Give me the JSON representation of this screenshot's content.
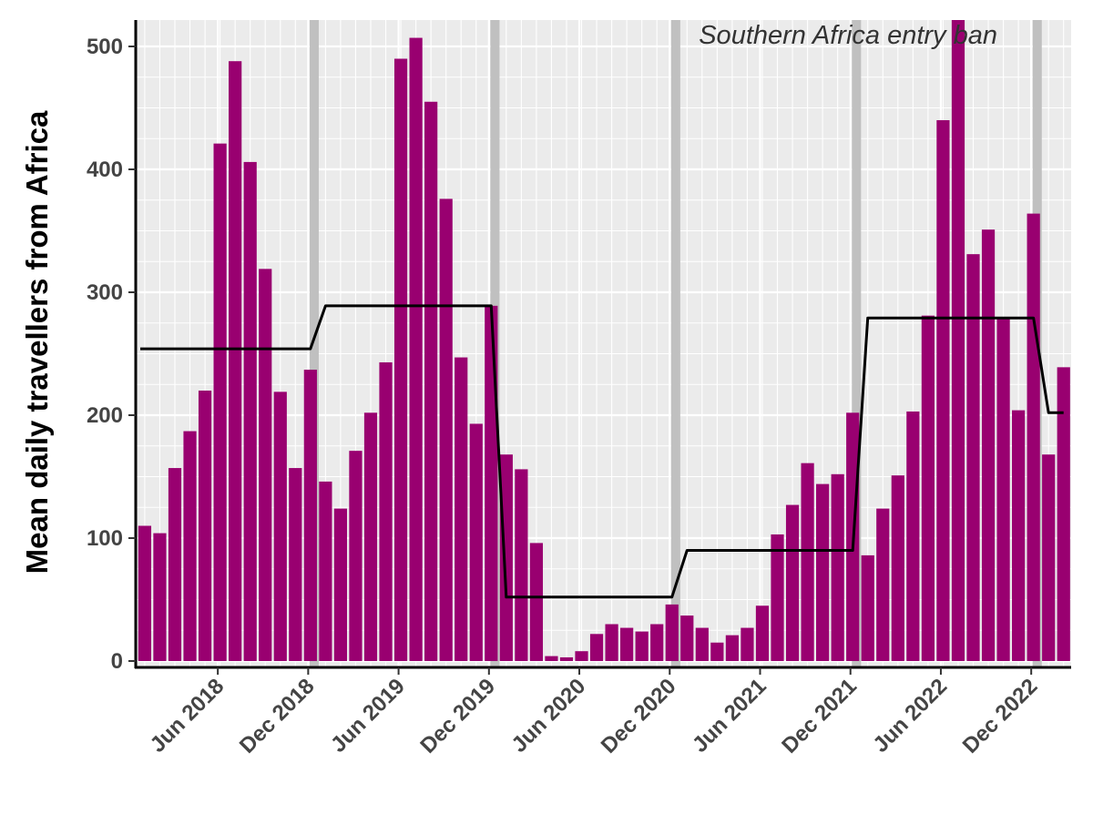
{
  "chart_data": {
    "type": "bar",
    "ylabel": "Mean daily travellers from Africa",
    "annotation": "Southern Africa entry ban",
    "ylim": [
      0,
      520
    ],
    "y_ticks": [
      0,
      100,
      200,
      300,
      400,
      500
    ],
    "x_ticks": [
      "Jun 2018",
      "Dec 2018",
      "Jun 2019",
      "Dec 2019",
      "Jun 2020",
      "Dec 2020",
      "Jun 2021",
      "Dec 2021",
      "Jun 2022",
      "Dec 2022"
    ],
    "grid": true,
    "colors": {
      "bars": "#990070",
      "line": "#000000",
      "highlight_band": "#c0c0c0",
      "panel_bg": "#ebebeb",
      "grid": "#ffffff",
      "axis_text": "#444444"
    },
    "series": [
      {
        "kind": "bar",
        "x": [
          "2018-01",
          "2018-02",
          "2018-03",
          "2018-04",
          "2018-05",
          "2018-06",
          "2018-07",
          "2018-08",
          "2018-09",
          "2018-10",
          "2018-11",
          "2018-12",
          "2019-01",
          "2019-02",
          "2019-03",
          "2019-04",
          "2019-05",
          "2019-06",
          "2019-07",
          "2019-08",
          "2019-09",
          "2019-10",
          "2019-11",
          "2019-12",
          "2020-01",
          "2020-02",
          "2020-03",
          "2020-04",
          "2020-05",
          "2020-06",
          "2020-07",
          "2020-08",
          "2020-09",
          "2020-10",
          "2020-11",
          "2020-12",
          "2021-01",
          "2021-02",
          "2021-03",
          "2021-04",
          "2021-05",
          "2021-06",
          "2021-07",
          "2021-08",
          "2021-09",
          "2021-10",
          "2021-11",
          "2021-12",
          "2022-01",
          "2022-02",
          "2022-03",
          "2022-04",
          "2022-05",
          "2022-06",
          "2022-07",
          "2022-08",
          "2022-09",
          "2022-10",
          "2022-11",
          "2022-12",
          "2023-01",
          "2023-02"
        ],
        "values": [
          110,
          104,
          157,
          187,
          220,
          421,
          488,
          406,
          319,
          219,
          157,
          237,
          146,
          124,
          171,
          202,
          243,
          490,
          507,
          455,
          376,
          247,
          193,
          289,
          168,
          156,
          96,
          4,
          3,
          8,
          22,
          30,
          27,
          24,
          30,
          46,
          37,
          27,
          15,
          21,
          27,
          45,
          103,
          127,
          161,
          144,
          152,
          202,
          86,
          124,
          151,
          203,
          281,
          440,
          525,
          331,
          351,
          280,
          204,
          364,
          168,
          239
        ]
      },
      {
        "kind": "line",
        "x": [
          "2018-01",
          "2018-12",
          "2019-01",
          "2019-12",
          "2020-01",
          "2020-12",
          "2021-01",
          "2021-12",
          "2022-01",
          "2022-12",
          "2023-01",
          "2023-02"
        ],
        "values": [
          254,
          254,
          289,
          289,
          52,
          52,
          90,
          90,
          279,
          279,
          202,
          202
        ]
      }
    ],
    "highlight_months": [
      "2018-12",
      "2019-12",
      "2020-12",
      "2021-12",
      "2022-12"
    ]
  }
}
